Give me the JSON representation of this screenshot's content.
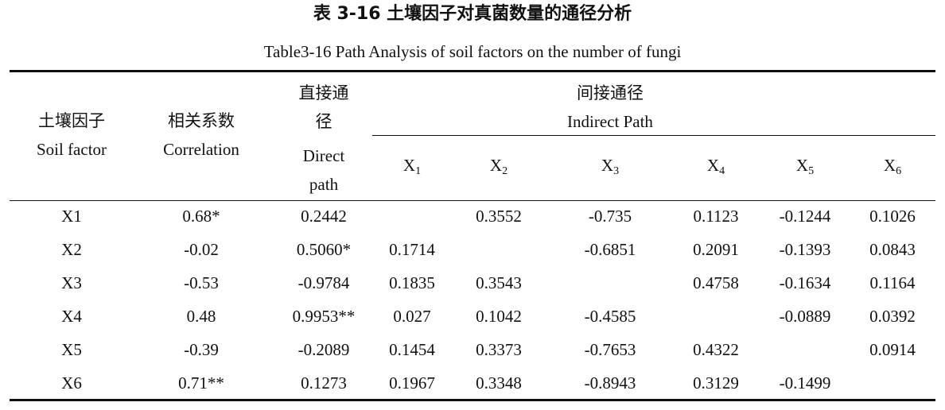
{
  "title_cn": "表 3-16 土壤因子对真菌数量的通径分析",
  "title_en": "Table3-16 Path Analysis of soil factors on the number of fungi",
  "header": {
    "soil_factor": {
      "cn": "土壤因子",
      "en": "Soil factor"
    },
    "correlation": {
      "cn": "相关系数",
      "en": "Correlation"
    },
    "direct": {
      "cn": "直接通径",
      "en": "Direct path"
    },
    "indirect": {
      "cn": "间接通径",
      "en": "Indirect Path"
    },
    "columns": [
      {
        "base": "X",
        "sub": "1"
      },
      {
        "base": "X",
        "sub": "2"
      },
      {
        "base": "X",
        "sub": "3"
      },
      {
        "base": "X",
        "sub": "4"
      },
      {
        "base": "X",
        "sub": "5"
      },
      {
        "base": "X",
        "sub": "6"
      }
    ]
  },
  "table": {
    "rows": [
      [
        "X1",
        "0.68*",
        "0.2442",
        null,
        "0.3552",
        "-0.735",
        "0.1123",
        "-0.1244",
        "0.1026"
      ],
      [
        "X2",
        "-0.02",
        "0.5060*",
        "0.1714",
        null,
        "-0.6851",
        "0.2091",
        "-0.1393",
        "0.0843"
      ],
      [
        "X3",
        "-0.53",
        "-0.9784",
        "0.1835",
        "0.3543",
        null,
        "0.4758",
        "-0.1634",
        "0.1164"
      ],
      [
        "X4",
        "0.48",
        "0.9953**",
        "0.027",
        "0.1042",
        "-0.4585",
        null,
        "-0.0889",
        "0.0392"
      ],
      [
        "X5",
        "-0.39",
        "-0.2089",
        "0.1454",
        "0.3373",
        "-0.7653",
        "0.4322",
        null,
        "0.0914"
      ],
      [
        "X6",
        "0.71**",
        "0.1273",
        "0.1967",
        "0.3348",
        "-0.8943",
        "0.3129",
        "-0.1499",
        null
      ]
    ]
  }
}
